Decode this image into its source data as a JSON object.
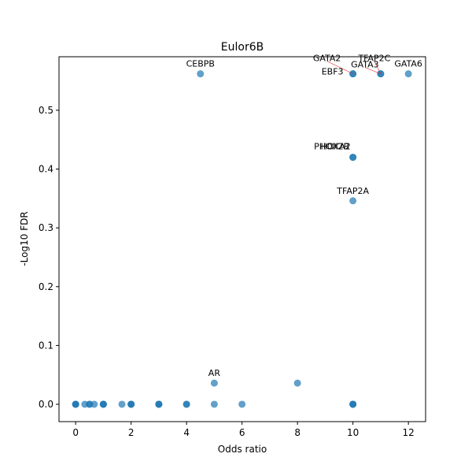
{
  "chart_data": {
    "type": "scatter",
    "title": "Eulor6B",
    "x_label": "Odds ratio",
    "y_label": "-Log10 FDR",
    "color": "#1f77b4",
    "x": [
      4.5,
      10,
      10,
      11,
      11,
      12,
      10,
      10,
      10,
      5,
      8,
      0,
      0,
      0,
      0.33,
      0.5,
      0.5,
      0.67,
      1,
      1,
      1,
      1.67,
      2,
      2,
      2,
      3,
      3,
      3,
      4,
      4,
      5,
      6,
      10,
      10,
      10
    ],
    "values": [
      0.562,
      0.562,
      0.562,
      0.562,
      0.562,
      0.562,
      0.42,
      0.42,
      0.346,
      0.036,
      0.036,
      0,
      0,
      0,
      0,
      0,
      0,
      0,
      0,
      0,
      0,
      0,
      0,
      0,
      0,
      0,
      0,
      0,
      0,
      0,
      0,
      0,
      0,
      0,
      0
    ],
    "point_labels": [
      "CEBPB",
      "GATA2",
      "EBF3",
      "GATA3",
      "TFAP2C",
      "GATA6",
      "PHOX2B",
      "HOXA2",
      "TFAP2A",
      "AR",
      null,
      null,
      null,
      null,
      null,
      null,
      null,
      null,
      null,
      null,
      null,
      null,
      null,
      null,
      null,
      null,
      null,
      null,
      null,
      null,
      null,
      null,
      null,
      null,
      null
    ],
    "xlim": [
      -0.6,
      12.62
    ],
    "ylim": [
      -0.0295,
      0.591
    ],
    "xticks": [
      0,
      2,
      4,
      6,
      8,
      10,
      12
    ],
    "yticks": [
      {
        "value": 0,
        "label": "0.0"
      },
      0.1,
      0.2,
      0.3,
      0.4,
      0.5
    ]
  }
}
